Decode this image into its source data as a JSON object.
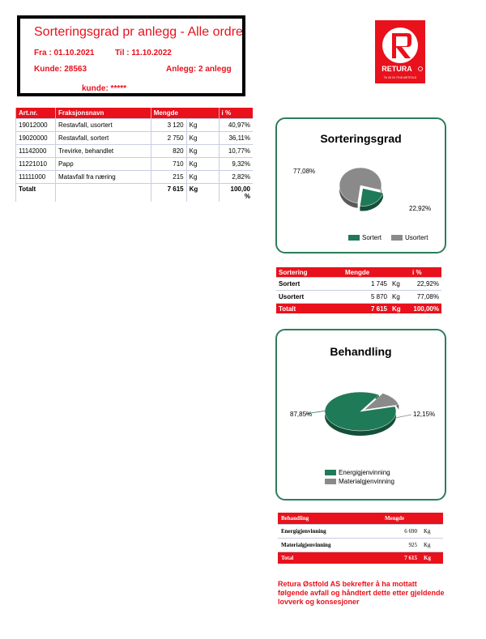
{
  "header": {
    "title": "Sorteringsgrad pr anlegg - Alle ordre",
    "from": "Fra :  01.10.2021",
    "to": "Til : 11.10.2022",
    "customer": "Kunde: 28563",
    "facility": "Anlegg: 2 anlegg",
    "customer_name": "kunde: *****"
  },
  "logo": {
    "brand": "RETURA",
    "sub": "Tlf. 69 00 79 00     ØSTFOLD"
  },
  "colors": {
    "red": "#e8111c",
    "green": "#1f7a57",
    "grey": "#8a8a8a",
    "panel_border": "#2e7d5b"
  },
  "main_table": {
    "headers": [
      "Art.nr.",
      "Fraksjonsnavn",
      "Mengde",
      "i %"
    ],
    "rows": [
      {
        "artnr": "19012000",
        "name": "Restavfall, usortert",
        "amount": "3 120",
        "unit": "Kg",
        "pct": "40,97%"
      },
      {
        "artnr": "19020000",
        "name": "Restavfall, sortert",
        "amount": "2 750",
        "unit": "Kg",
        "pct": "36,11%"
      },
      {
        "artnr": "11142000",
        "name": "Trevirke, behandlet",
        "amount": "820",
        "unit": "Kg",
        "pct": "10,77%"
      },
      {
        "artnr": "11221010",
        "name": "Papp",
        "amount": "710",
        "unit": "Kg",
        "pct": "9,32%"
      },
      {
        "artnr": "11111000",
        "name": "Matavfall fra næring",
        "amount": "215",
        "unit": "Kg",
        "pct": "2,82%"
      }
    ],
    "total": {
      "label": "Totalt",
      "amount": "7 615",
      "unit": "Kg",
      "pct_line1": "100,00",
      "pct_line2": "%"
    }
  },
  "chart_data": [
    {
      "type": "pie",
      "title": "Sorteringsgrad",
      "categories": [
        "Sortert",
        "Usortert"
      ],
      "values": [
        22.92,
        77.08
      ],
      "labels": [
        "22,92%",
        "77,08%"
      ],
      "colors": [
        "#1f7a57",
        "#8a8a8a"
      ],
      "legend": "bottom"
    },
    {
      "type": "pie",
      "title": "Behandling",
      "categories": [
        "Energigjenvinning",
        "Materialgjenvinning"
      ],
      "values": [
        87.85,
        12.15
      ],
      "labels": [
        "87,85%",
        "12,15%"
      ],
      "colors": [
        "#1f7a57",
        "#8a8a8a"
      ],
      "legend": "bottom"
    }
  ],
  "sort_table": {
    "headers": [
      "Sortering",
      "Mengde",
      "i %"
    ],
    "rows": [
      {
        "name": "Sortert",
        "amount": "1 745",
        "unit": "Kg",
        "pct": "22,92%"
      },
      {
        "name": "Usortert",
        "amount": "5 870",
        "unit": "Kg",
        "pct": "77,08%"
      }
    ],
    "total": {
      "name": "Totalt",
      "amount": "7 615",
      "unit": "Kg",
      "pct": "100,00%"
    }
  },
  "beh_table": {
    "headers": [
      "Behandling",
      "Mengde"
    ],
    "rows": [
      {
        "name": "Energigjenvinning",
        "amount": "6 690",
        "unit": "Kg"
      },
      {
        "name": "Materialgjenvinning",
        "amount": "925",
        "unit": "Kg"
      }
    ],
    "total": {
      "name": "Total",
      "amount": "7 615",
      "unit": "Kg"
    }
  },
  "footer_note": "Retura Østfold AS bekrefter å ha mottatt følgende avfall og håndtert dette etter gjeldende lovverk og konsesjoner"
}
